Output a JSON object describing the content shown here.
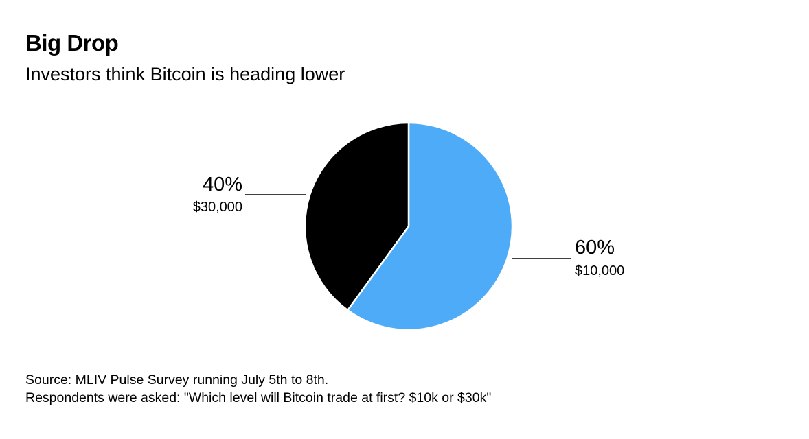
{
  "header": {
    "title": "Big Drop",
    "subtitle": "Investors think Bitcoin is heading lower"
  },
  "chart_data": {
    "type": "pie",
    "title": "Big Drop",
    "subtitle": "Investors think Bitcoin is heading lower",
    "slices": [
      {
        "label": "$10,000",
        "value": 60,
        "display": "60%",
        "color": "#4dabf7"
      },
      {
        "label": "$30,000",
        "value": 40,
        "display": "40%",
        "color": "#000000"
      }
    ]
  },
  "footer": {
    "source": "Source: MLIV Pulse Survey running July 5th to 8th.",
    "note": "Respondents were asked: \"Which level will Bitcoin trade at first? $10k or $30k\""
  }
}
